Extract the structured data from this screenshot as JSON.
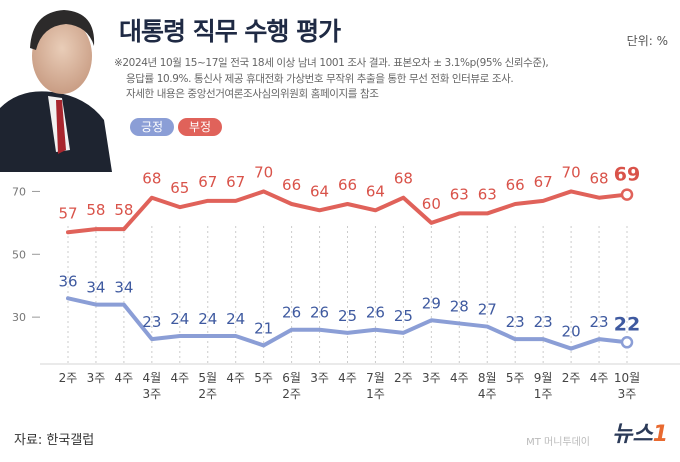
{
  "header": {
    "title": "대통령 직무 수행 평가",
    "unit": "단위: %",
    "notes": [
      "※2024년 10월 15~17일 전국 18세 이상 남녀 1001 조사 결과. 표본오차 ± 3.1%p(95% 신뢰수준),",
      "응답률 10.9%. 통신사 제공 휴대전화 가상번호 무작위 추출을 통한 무선 전화 인터뷰로 조사.",
      "자세한 내용은 중앙선거여론조사심의위원회 홈페이지를 참조"
    ]
  },
  "legend": {
    "positive": "긍정",
    "negative": "부정"
  },
  "footer": {
    "source": "자료: 한국갤럽",
    "logo_text": "뉴스",
    "logo_mark": "1",
    "watermark": "MT 머니투데이"
  },
  "colors": {
    "positive": "#8b9ed6",
    "negative": "#e0625a",
    "positive_label": "#3f5aa0",
    "negative_label": "#d9534a",
    "grid": "#cccccc"
  },
  "chart_data": {
    "type": "line",
    "categories": [
      [
        "2주"
      ],
      [
        "3주"
      ],
      [
        "4주"
      ],
      [
        "4월",
        "3주"
      ],
      [
        "4주"
      ],
      [
        "5월",
        "2주"
      ],
      [
        "4주"
      ],
      [
        "5주"
      ],
      [
        "6월",
        "2주"
      ],
      [
        "3주"
      ],
      [
        "4주"
      ],
      [
        "7월",
        "1주"
      ],
      [
        "2주"
      ],
      [
        "3주"
      ],
      [
        "4주"
      ],
      [
        "8월",
        "4주"
      ],
      [
        "5주"
      ],
      [
        "9월",
        "1주"
      ],
      [
        "2주"
      ],
      [
        "4주"
      ],
      [
        "10월",
        "3주"
      ]
    ],
    "series": [
      {
        "name": "부정",
        "values": [
          57,
          58,
          58,
          68,
          65,
          67,
          67,
          70,
          66,
          64,
          66,
          64,
          68,
          60,
          63,
          63,
          66,
          67,
          70,
          68,
          69
        ]
      },
      {
        "name": "긍정",
        "values": [
          36,
          34,
          34,
          23,
          24,
          24,
          24,
          21,
          26,
          26,
          25,
          26,
          25,
          29,
          28,
          27,
          23,
          23,
          20,
          23,
          22
        ]
      }
    ],
    "ylim": [
      17,
      80
    ],
    "yticks": [
      30,
      50,
      70
    ],
    "grid": false,
    "legend_position": "top-left"
  }
}
